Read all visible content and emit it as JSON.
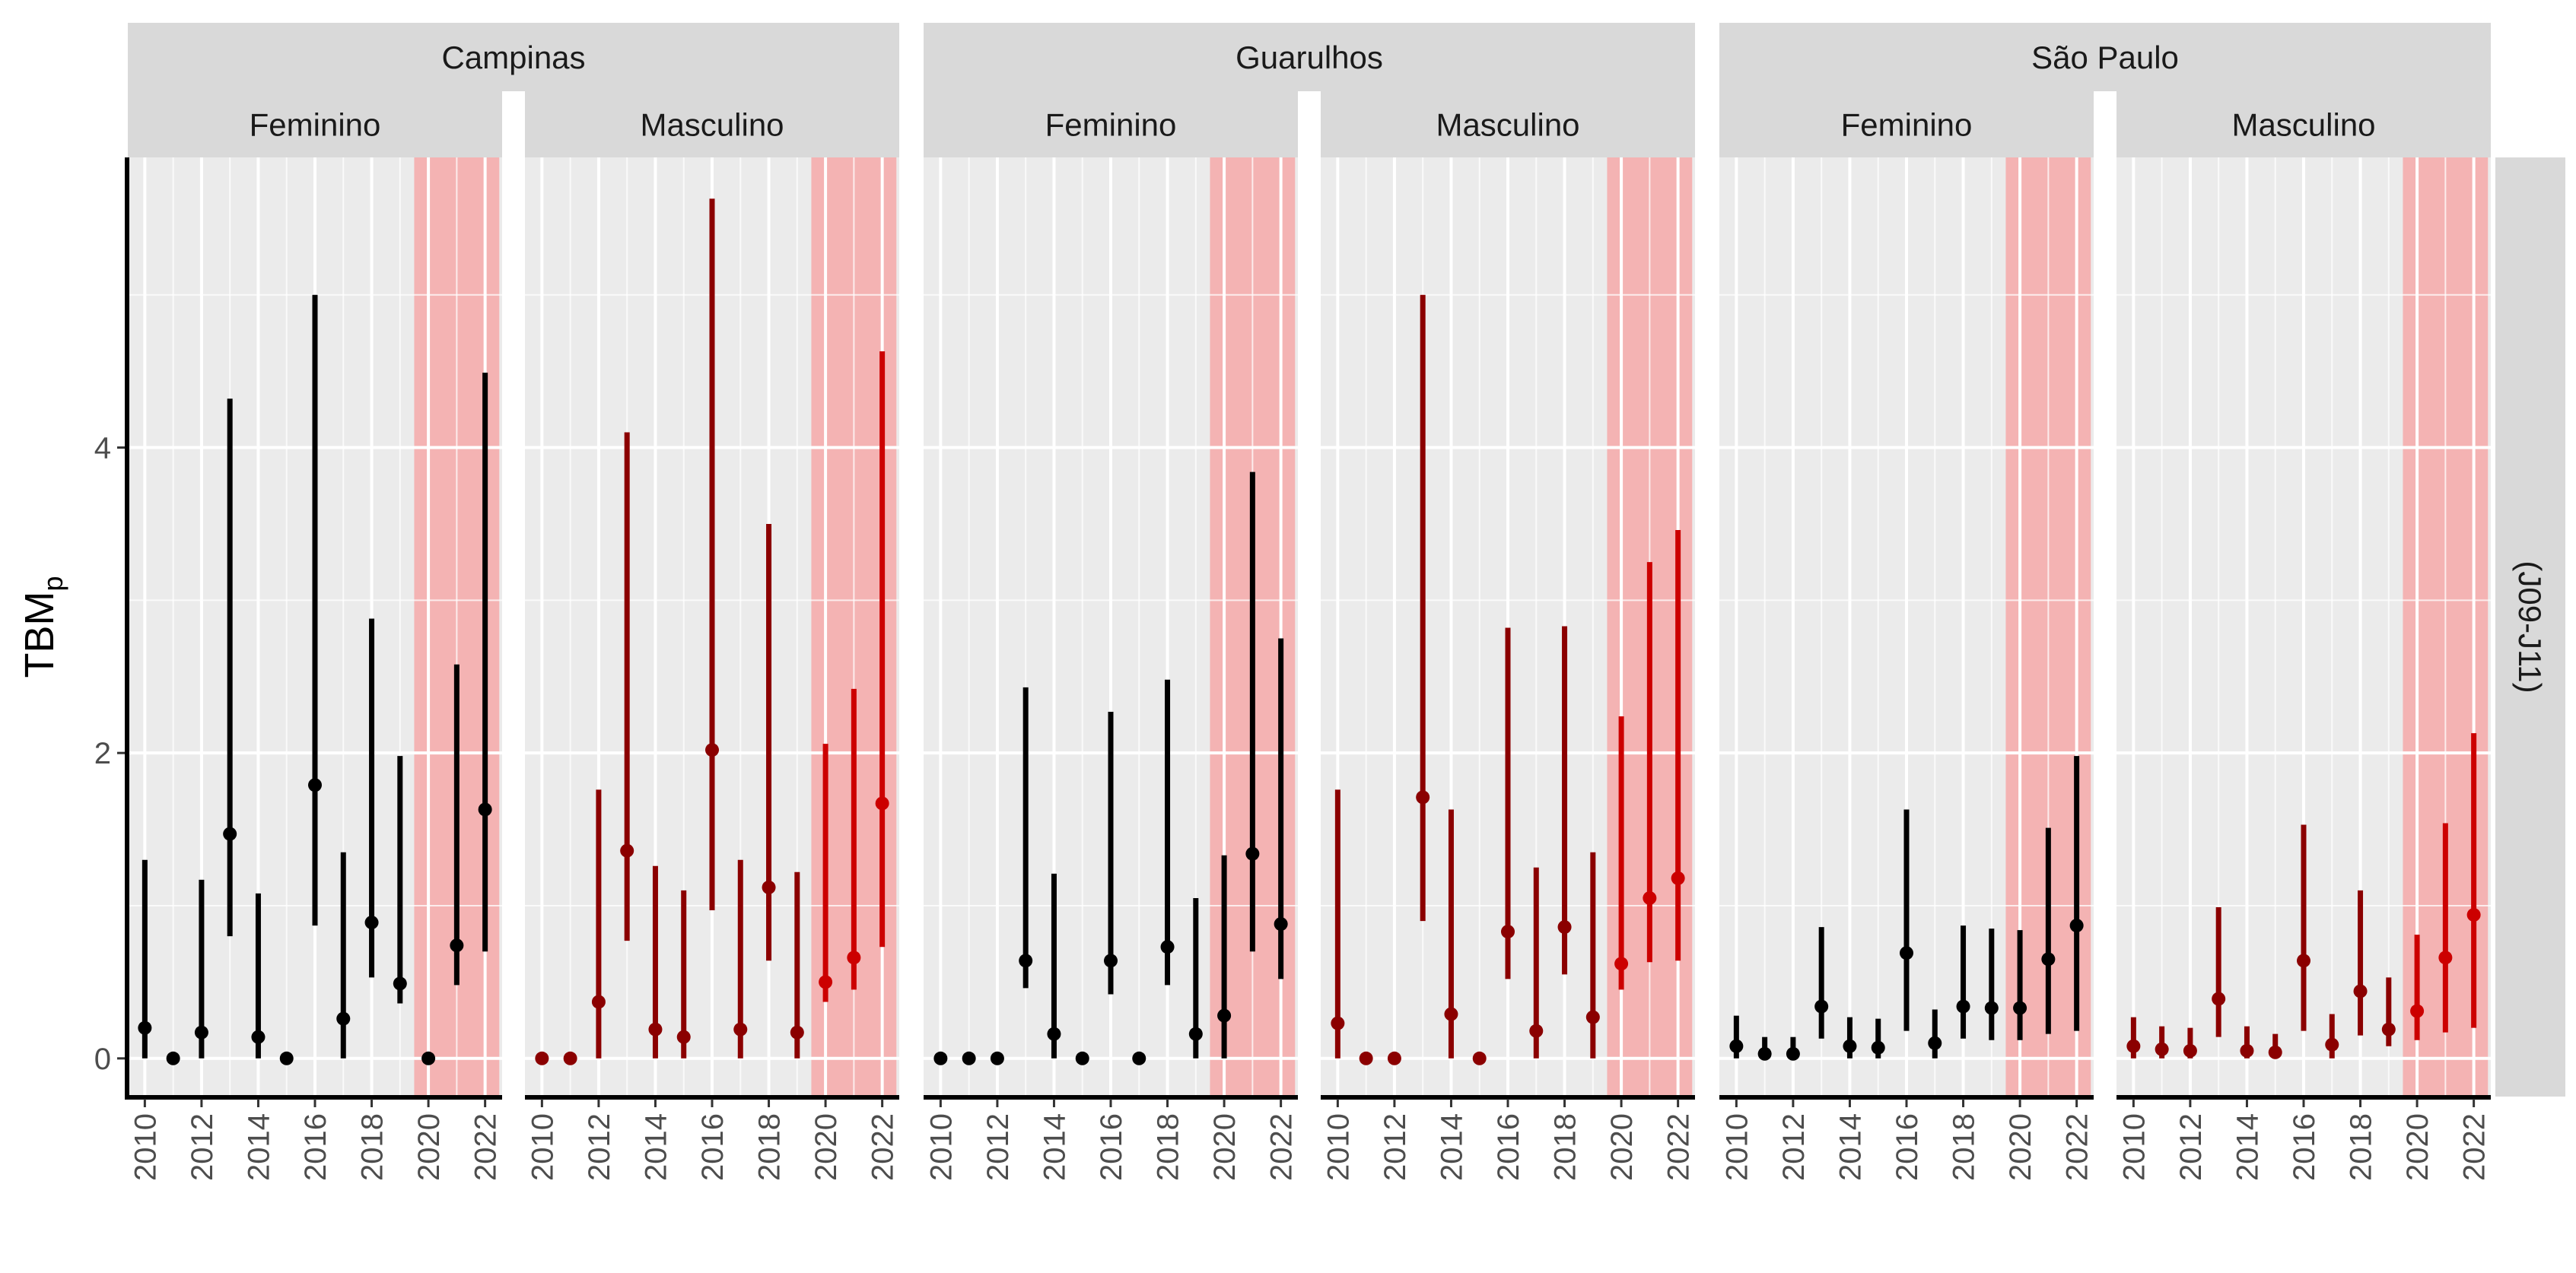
{
  "chart_data": {
    "type": "errorbar",
    "ylabel": "TBMp",
    "ylabel_main": "TBM",
    "ylabel_sub": "p",
    "row_strip": "(J09-J11)",
    "ylim": [
      -0.25,
      5.9
    ],
    "y_ticks": [
      0,
      2,
      4
    ],
    "x_ticks": [
      2010,
      2012,
      2014,
      2016,
      2018,
      2020,
      2022
    ],
    "xlim": [
      2009.4,
      2022.6
    ],
    "highlight_range": [
      2019.5,
      2022.5
    ],
    "colors": {
      "Feminino": "#000000",
      "Masculino_pre": "#8B0000",
      "Masculino_post": "#CC0000",
      "highlight": "#F4B3B3",
      "panel_bg": "#EBEBEB",
      "strip_bg": "#D9D9D9"
    },
    "panels": [
      {
        "city": "Campinas",
        "sex": "Feminino",
        "points": [
          {
            "year": 2010,
            "y": 0.2,
            "lo": 0.0,
            "hi": 1.3
          },
          {
            "year": 2011,
            "y": 0.0
          },
          {
            "year": 2012,
            "y": 0.17,
            "lo": 0.0,
            "hi": 1.17
          },
          {
            "year": 2013,
            "y": 1.47,
            "lo": 0.8,
            "hi": 4.32
          },
          {
            "year": 2014,
            "y": 0.14,
            "lo": 0.0,
            "hi": 1.08
          },
          {
            "year": 2015,
            "y": 0.0
          },
          {
            "year": 2016,
            "y": 1.79,
            "lo": 0.87,
            "hi": 5.0
          },
          {
            "year": 2017,
            "y": 0.26,
            "lo": 0.0,
            "hi": 1.35
          },
          {
            "year": 2018,
            "y": 0.89,
            "lo": 0.53,
            "hi": 2.88
          },
          {
            "year": 2019,
            "y": 0.49,
            "lo": 0.36,
            "hi": 1.98
          },
          {
            "year": 2020,
            "y": 0.0
          },
          {
            "year": 2021,
            "y": 0.74,
            "lo": 0.48,
            "hi": 2.58
          },
          {
            "year": 2022,
            "y": 1.63,
            "lo": 0.7,
            "hi": 4.49
          }
        ]
      },
      {
        "city": "Campinas",
        "sex": "Masculino",
        "points": [
          {
            "year": 2010,
            "y": 0.0
          },
          {
            "year": 2011,
            "y": 0.0
          },
          {
            "year": 2012,
            "y": 0.37,
            "lo": 0.0,
            "hi": 1.76
          },
          {
            "year": 2013,
            "y": 1.36,
            "lo": 0.77,
            "hi": 4.1
          },
          {
            "year": 2014,
            "y": 0.19,
            "lo": 0.0,
            "hi": 1.26
          },
          {
            "year": 2015,
            "y": 0.14,
            "lo": 0.0,
            "hi": 1.1
          },
          {
            "year": 2016,
            "y": 2.02,
            "lo": 0.97,
            "hi": 5.63
          },
          {
            "year": 2017,
            "y": 0.19,
            "lo": 0.0,
            "hi": 1.3
          },
          {
            "year": 2018,
            "y": 1.12,
            "lo": 0.64,
            "hi": 3.5
          },
          {
            "year": 2019,
            "y": 0.17,
            "lo": 0.0,
            "hi": 1.22
          },
          {
            "year": 2020,
            "y": 0.5,
            "lo": 0.37,
            "hi": 2.06
          },
          {
            "year": 2021,
            "y": 0.66,
            "lo": 0.45,
            "hi": 2.42
          },
          {
            "year": 2022,
            "y": 1.67,
            "lo": 0.73,
            "hi": 4.63
          }
        ]
      },
      {
        "city": "Guarulhos",
        "sex": "Feminino",
        "points": [
          {
            "year": 2010,
            "y": 0.0
          },
          {
            "year": 2011,
            "y": 0.0
          },
          {
            "year": 2012,
            "y": 0.0
          },
          {
            "year": 2013,
            "y": 0.64,
            "lo": 0.46,
            "hi": 2.43
          },
          {
            "year": 2014,
            "y": 0.16,
            "lo": 0.0,
            "hi": 1.21
          },
          {
            "year": 2015,
            "y": 0.0
          },
          {
            "year": 2016,
            "y": 0.64,
            "lo": 0.42,
            "hi": 2.27
          },
          {
            "year": 2017,
            "y": 0.0
          },
          {
            "year": 2018,
            "y": 0.73,
            "lo": 0.48,
            "hi": 2.48
          },
          {
            "year": 2019,
            "y": 0.16,
            "lo": 0.0,
            "hi": 1.05
          },
          {
            "year": 2020,
            "y": 0.28,
            "lo": 0.0,
            "hi": 1.33
          },
          {
            "year": 2021,
            "y": 1.34,
            "lo": 0.7,
            "hi": 3.84
          },
          {
            "year": 2022,
            "y": 0.88,
            "lo": 0.52,
            "hi": 2.75
          }
        ]
      },
      {
        "city": "Guarulhos",
        "sex": "Masculino",
        "points": [
          {
            "year": 2010,
            "y": 0.23,
            "lo": 0.0,
            "hi": 1.76
          },
          {
            "year": 2011,
            "y": 0.0
          },
          {
            "year": 2012,
            "y": 0.0
          },
          {
            "year": 2013,
            "y": 1.71,
            "lo": 0.9,
            "hi": 5.0
          },
          {
            "year": 2014,
            "y": 0.29,
            "lo": 0.0,
            "hi": 1.63
          },
          {
            "year": 2015,
            "y": 0.0
          },
          {
            "year": 2016,
            "y": 0.83,
            "lo": 0.52,
            "hi": 2.82
          },
          {
            "year": 2017,
            "y": 0.18,
            "lo": 0.0,
            "hi": 1.25
          },
          {
            "year": 2018,
            "y": 0.86,
            "lo": 0.55,
            "hi": 2.83
          },
          {
            "year": 2019,
            "y": 0.27,
            "lo": 0.0,
            "hi": 1.35
          },
          {
            "year": 2020,
            "y": 0.62,
            "lo": 0.45,
            "hi": 2.24
          },
          {
            "year": 2021,
            "y": 1.05,
            "lo": 0.63,
            "hi": 3.25
          },
          {
            "year": 2022,
            "y": 1.18,
            "lo": 0.64,
            "hi": 3.46
          }
        ]
      },
      {
        "city": "São Paulo",
        "sex": "Feminino",
        "points": [
          {
            "year": 2010,
            "y": 0.08,
            "lo": 0.0,
            "hi": 0.28
          },
          {
            "year": 2011,
            "y": 0.03,
            "lo": 0.0,
            "hi": 0.14
          },
          {
            "year": 2012,
            "y": 0.03,
            "lo": 0.0,
            "hi": 0.14
          },
          {
            "year": 2013,
            "y": 0.34,
            "lo": 0.13,
            "hi": 0.86
          },
          {
            "year": 2014,
            "y": 0.08,
            "lo": 0.0,
            "hi": 0.27
          },
          {
            "year": 2015,
            "y": 0.07,
            "lo": 0.0,
            "hi": 0.26
          },
          {
            "year": 2016,
            "y": 0.69,
            "lo": 0.18,
            "hi": 1.63
          },
          {
            "year": 2017,
            "y": 0.1,
            "lo": 0.0,
            "hi": 0.32
          },
          {
            "year": 2018,
            "y": 0.34,
            "lo": 0.13,
            "hi": 0.87
          },
          {
            "year": 2019,
            "y": 0.33,
            "lo": 0.12,
            "hi": 0.85
          },
          {
            "year": 2020,
            "y": 0.33,
            "lo": 0.12,
            "hi": 0.84
          },
          {
            "year": 2021,
            "y": 0.65,
            "lo": 0.16,
            "hi": 1.51
          },
          {
            "year": 2022,
            "y": 0.87,
            "lo": 0.18,
            "hi": 1.98
          }
        ]
      },
      {
        "city": "São Paulo",
        "sex": "Masculino",
        "points": [
          {
            "year": 2010,
            "y": 0.08,
            "lo": 0.0,
            "hi": 0.27
          },
          {
            "year": 2011,
            "y": 0.06,
            "lo": 0.0,
            "hi": 0.21
          },
          {
            "year": 2012,
            "y": 0.05,
            "lo": 0.0,
            "hi": 0.2
          },
          {
            "year": 2013,
            "y": 0.39,
            "lo": 0.14,
            "hi": 0.99
          },
          {
            "year": 2014,
            "y": 0.05,
            "lo": 0.0,
            "hi": 0.21
          },
          {
            "year": 2015,
            "y": 0.04,
            "lo": 0.0,
            "hi": 0.16
          },
          {
            "year": 2016,
            "y": 0.64,
            "lo": 0.18,
            "hi": 1.53
          },
          {
            "year": 2017,
            "y": 0.09,
            "lo": 0.0,
            "hi": 0.29
          },
          {
            "year": 2018,
            "y": 0.44,
            "lo": 0.15,
            "hi": 1.1
          },
          {
            "year": 2019,
            "y": 0.19,
            "lo": 0.08,
            "hi": 0.53
          },
          {
            "year": 2020,
            "y": 0.31,
            "lo": 0.12,
            "hi": 0.81
          },
          {
            "year": 2021,
            "y": 0.66,
            "lo": 0.17,
            "hi": 1.54
          },
          {
            "year": 2022,
            "y": 0.94,
            "lo": 0.2,
            "hi": 2.13
          }
        ]
      }
    ]
  }
}
